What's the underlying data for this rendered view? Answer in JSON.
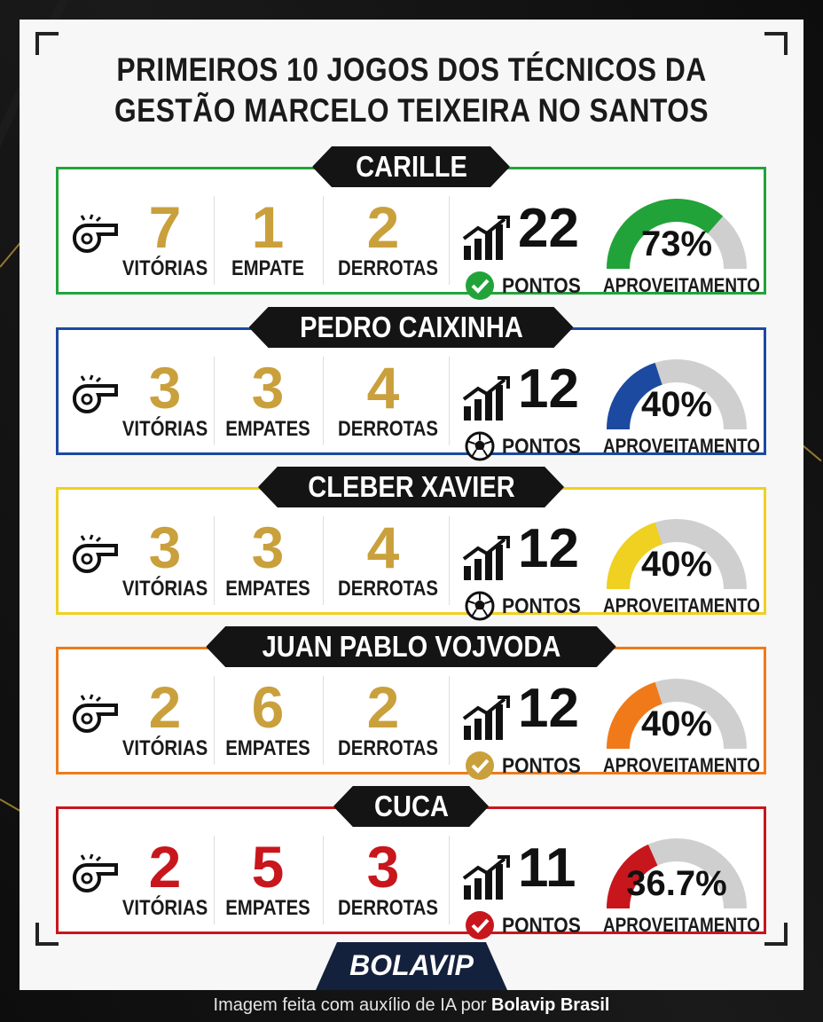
{
  "title": {
    "line1": "PRIMEIROS 10 JOGOS DOS TÉCNICOS DA",
    "line2": "GESTÃO MARCELO TEIXEIRA NO SANTOS"
  },
  "coaches": [
    {
      "name": "CARILLE",
      "color": "#22a33a",
      "num_color": "#c9a03c",
      "wins": "7",
      "wins_label": "VITÓRIAS",
      "draws": "1",
      "draws_label": "EMPATE",
      "losses": "2",
      "losses_label": "DERROTAS",
      "points": "22",
      "points_label": "PONTOS",
      "badge": "check-green",
      "percent_text": "73%",
      "percent": 73,
      "aproveitamento_label": "APROVEITAMENTO"
    },
    {
      "name": "PEDRO CAIXINHA",
      "color": "#1b4aa0",
      "num_color": "#c9a03c",
      "wins": "3",
      "wins_label": "VITÓRIAS",
      "draws": "3",
      "draws_label": "EMPATES",
      "losses": "4",
      "losses_label": "DERROTAS",
      "points": "12",
      "points_label": "PONTOS",
      "badge": "soccer-ball",
      "percent_text": "40%",
      "percent": 40,
      "aproveitamento_label": "APROVEITAMENTO"
    },
    {
      "name": "CLEBER XAVIER",
      "color": "#f0d020",
      "num_color": "#c9a03c",
      "wins": "3",
      "wins_label": "VITÓRIAS",
      "draws": "3",
      "draws_label": "EMPATES",
      "losses": "4",
      "losses_label": "DERROTAS",
      "points": "12",
      "points_label": "PONTOS",
      "badge": "soccer-ball",
      "percent_text": "40%",
      "percent": 40,
      "aproveitamento_label": "APROVEITAMENTO"
    },
    {
      "name": "JUAN PABLO VOJVODA",
      "color": "#f07a1a",
      "num_color": "#c9a03c",
      "wins": "2",
      "wins_label": "VITÓRIAS",
      "draws": "6",
      "draws_label": "EMPATES",
      "losses": "2",
      "losses_label": "DERROTAS",
      "points": "12",
      "points_label": "PONTOS",
      "badge": "check-gold",
      "percent_text": "40%",
      "percent": 40,
      "aproveitamento_label": "APROVEITAMENTO"
    },
    {
      "name": "CUCA",
      "color": "#c8161d",
      "num_color": "#c8161d",
      "wins": "2",
      "wins_label": "VITÓRIAS",
      "draws": "5",
      "draws_label": "EMPATES",
      "losses": "3",
      "losses_label": "DERROTAS",
      "points": "11",
      "points_label": "PONTOS",
      "badge": "check-red",
      "percent_text": "36.7%",
      "percent": 36.7,
      "aproveitamento_label": "APROVEITAMENTO"
    }
  ],
  "logo": {
    "text": "BOLAVIP"
  },
  "footer": {
    "prefix": "Imagem feita com auxílio de IA por ",
    "brand": "Bolavip Brasil"
  }
}
